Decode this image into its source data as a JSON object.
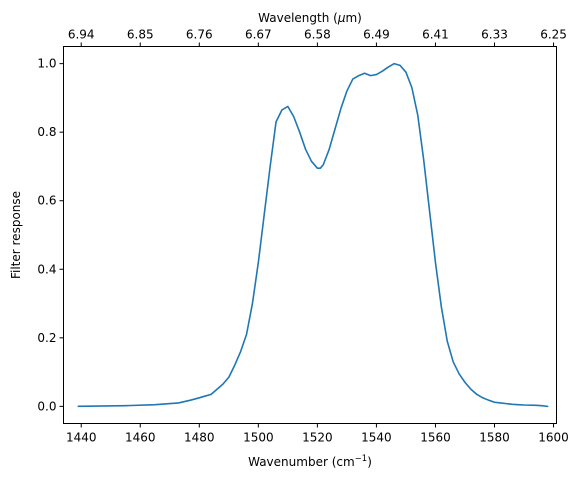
{
  "chart_data": {
    "type": "line",
    "xlabel": "Wavenumber (cm",
    "xlabel_sup": "−1",
    "xlabel_end": ")",
    "ylabel": "Filter response",
    "top_xlabel_pre": "Wavelength (",
    "top_xlabel_mu": "μ",
    "top_xlabel_post": "m)",
    "xlim": [
      1434,
      1601
    ],
    "ylim": [
      -0.05,
      1.05
    ],
    "xticks": [
      1440,
      1460,
      1480,
      1500,
      1520,
      1540,
      1560,
      1580,
      1600
    ],
    "yticks": [
      0.0,
      0.2,
      0.4,
      0.6,
      0.8,
      1.0
    ],
    "top_ticks": [
      "6.94",
      "6.85",
      "6.76",
      "6.67",
      "6.58",
      "6.49",
      "6.41",
      "6.33",
      "6.25"
    ],
    "series": [
      {
        "color": "#1f77b4",
        "x": [
          1439,
          1455,
          1465,
          1473,
          1477,
          1480,
          1482,
          1484,
          1486,
          1488,
          1490,
          1492,
          1494,
          1496,
          1498,
          1500,
          1502,
          1504,
          1506,
          1508,
          1510,
          1512,
          1514,
          1516,
          1518,
          1520,
          1521,
          1522,
          1524,
          1526,
          1528,
          1530,
          1532,
          1534,
          1536,
          1538,
          1540,
          1542,
          1544,
          1546,
          1548,
          1550,
          1552,
          1554,
          1556,
          1558,
          1560,
          1562,
          1564,
          1566,
          1568,
          1570,
          1572,
          1574,
          1576,
          1578,
          1580,
          1582,
          1584,
          1586,
          1588,
          1590,
          1594,
          1596,
          1598
        ],
        "y": [
          0.0,
          0.002,
          0.005,
          0.01,
          0.018,
          0.025,
          0.03,
          0.035,
          0.05,
          0.065,
          0.085,
          0.12,
          0.16,
          0.21,
          0.3,
          0.42,
          0.56,
          0.7,
          0.83,
          0.865,
          0.875,
          0.845,
          0.8,
          0.75,
          0.715,
          0.695,
          0.695,
          0.705,
          0.75,
          0.81,
          0.87,
          0.92,
          0.955,
          0.965,
          0.972,
          0.965,
          0.968,
          0.978,
          0.99,
          1.0,
          0.995,
          0.975,
          0.93,
          0.85,
          0.72,
          0.57,
          0.42,
          0.29,
          0.19,
          0.13,
          0.095,
          0.07,
          0.05,
          0.035,
          0.025,
          0.018,
          0.012,
          0.01,
          0.008,
          0.006,
          0.005,
          0.004,
          0.003,
          0.002,
          0.0
        ]
      }
    ]
  }
}
